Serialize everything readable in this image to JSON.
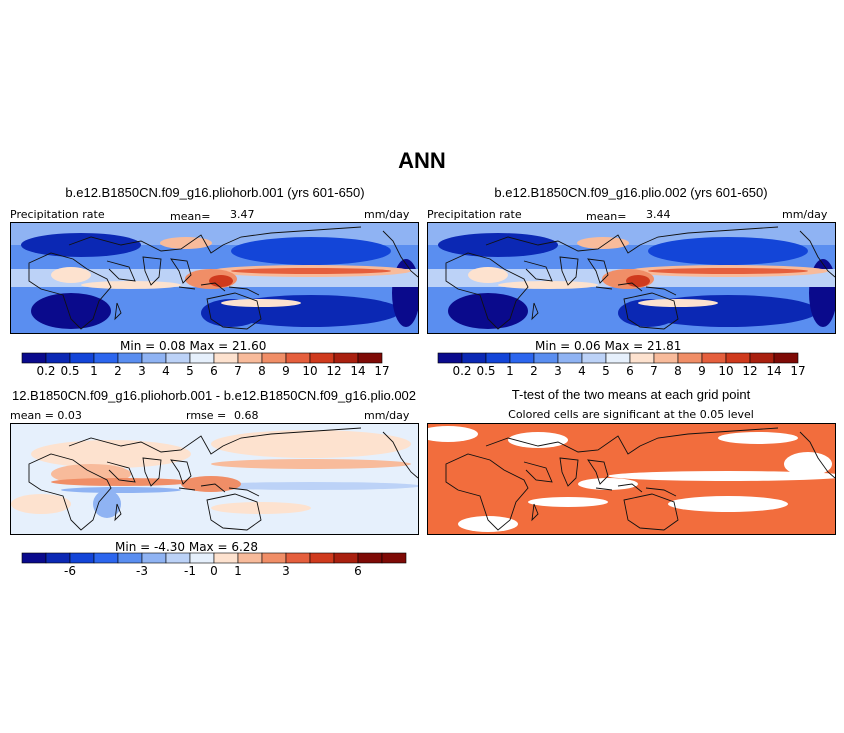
{
  "title": "ANN",
  "panels": [
    {
      "title": "b.e12.B1850CN.f09_g16.pliohorb.001 (yrs 601-650)",
      "left_label": "Precipitation rate",
      "mean_label": "mean=",
      "mean_value": "3.47",
      "units": "mm/day",
      "minmax": "Min =    0.08  Max =    21.60"
    },
    {
      "title": "b.e12.B1850CN.f09_g16.plio.002 (yrs 601-650)",
      "left_label": "Precipitation rate",
      "mean_label": "mean=",
      "mean_value": "3.44",
      "units": "mm/day",
      "minmax": "Min =    0.06  Max =    21.81"
    },
    {
      "title": "12.B1850CN.f09_g16.pliohorb.001 - b.e12.B1850CN.f09_g16.plio.002",
      "left_label": "mean =    0.03",
      "mean_label": "rmse =",
      "mean_value": "0.68",
      "units": "mm/day",
      "minmax": "Min =   -4.30  Max =    6.28"
    },
    {
      "title": "T-test of the two means at each grid point",
      "subtitle": "Colored cells are significant at the 0.05 level"
    }
  ],
  "colorbar_precip": {
    "labels": [
      "0.2",
      "0.5",
      "1",
      "2",
      "3",
      "4",
      "5",
      "6",
      "7",
      "8",
      "9",
      "10",
      "12",
      "14",
      "17"
    ],
    "colors": [
      "#0a0a8c",
      "#0b28b4",
      "#1345d8",
      "#2c66ee",
      "#5a8ef0",
      "#8fb3f3",
      "#bcd2f7",
      "#e6f0fc",
      "#fde2cf",
      "#f8bb9b",
      "#f08e67",
      "#e55f3d",
      "#cf3a1d",
      "#a9200f",
      "#7e0a06"
    ]
  },
  "colorbar_diff": {
    "labels": [
      "-6",
      "-3",
      "-1",
      "0",
      "1",
      "3",
      "6"
    ],
    "colors": [
      "#0a0a8c",
      "#0b28b4",
      "#1345d8",
      "#2c66ee",
      "#5a8ef0",
      "#8fb3f3",
      "#bcd2f7",
      "#e6f0fc",
      "#fde2cf",
      "#f8bb9b",
      "#f08e67",
      "#e55f3d",
      "#cf3a1d",
      "#a9200f",
      "#7e0a06",
      "#7e0a06"
    ]
  },
  "significance_color": "#f26d3d"
}
